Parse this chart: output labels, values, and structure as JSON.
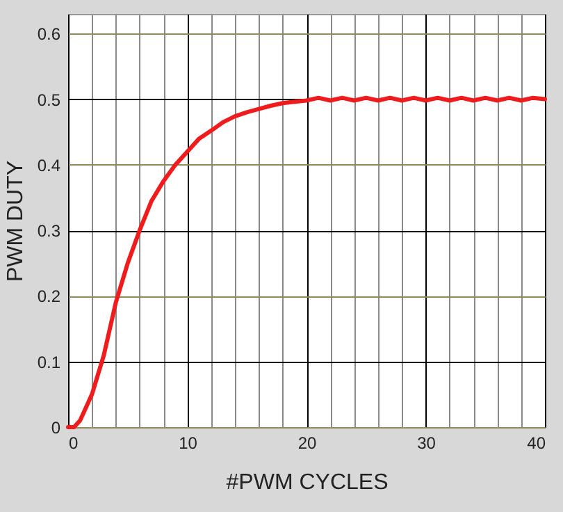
{
  "chart_data": {
    "type": "line",
    "xlabel": "#PWM CYCLES",
    "ylabel": "PWM DUTY",
    "xlim": [
      0,
      40
    ],
    "ylim": [
      0,
      0.63
    ],
    "xticks": [
      0,
      {
        "value": 2,
        "label": null
      },
      {
        "value": 4,
        "label": null
      },
      {
        "value": 6,
        "label": null
      },
      {
        "value": 8,
        "label": null
      },
      10,
      {
        "value": 12,
        "label": null
      },
      {
        "value": 14,
        "label": null
      },
      {
        "value": 16,
        "label": null
      },
      {
        "value": 18,
        "label": null
      },
      20,
      {
        "value": 22,
        "label": null
      },
      {
        "value": 24,
        "label": null
      },
      {
        "value": 26,
        "label": null
      },
      {
        "value": 28,
        "label": null
      },
      30,
      {
        "value": 32,
        "label": null
      },
      {
        "value": 34,
        "label": null
      },
      {
        "value": 36,
        "label": null
      },
      {
        "value": 38,
        "label": null
      },
      40
    ],
    "yticks": [
      0,
      0.1,
      0.2,
      0.3,
      0.4,
      0.5,
      0.6
    ],
    "grid": true,
    "marker": "none",
    "line_style": "solid",
    "series": [
      {
        "color": "#ee1c1c",
        "x": [
          0,
          0.5,
          1,
          1.5,
          2,
          3,
          4,
          5,
          6,
          7,
          8,
          9,
          10,
          11,
          12,
          13,
          14,
          15,
          16,
          17,
          18,
          19,
          20,
          21,
          22,
          23,
          24,
          25,
          26,
          27,
          28,
          29,
          30,
          31,
          32,
          33,
          34,
          35,
          36,
          37,
          38,
          39,
          40
        ],
        "values": [
          0,
          0,
          0.01,
          0.03,
          0.05,
          0.11,
          0.19,
          0.25,
          0.3,
          0.345,
          0.375,
          0.4,
          0.42,
          0.44,
          0.452,
          0.465,
          0.474,
          0.48,
          0.485,
          0.49,
          0.494,
          0.496,
          0.498,
          0.502,
          0.498,
          0.502,
          0.498,
          0.502,
          0.498,
          0.502,
          0.498,
          0.502,
          0.498,
          0.502,
          0.498,
          0.502,
          0.498,
          0.502,
          0.498,
          0.502,
          0.498,
          0.502,
          0.5
        ]
      }
    ]
  }
}
